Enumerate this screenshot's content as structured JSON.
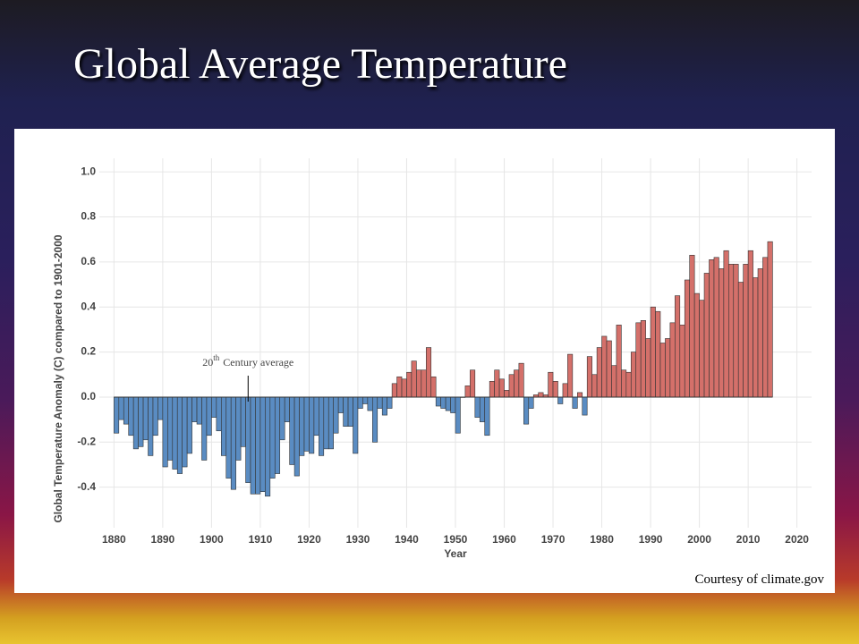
{
  "chart_data": {
    "type": "bar",
    "title": "Global Average Temperature",
    "xlabel": "Year",
    "ylabel": "Global Temperature Anomaly (C) compared to 1901-2000",
    "source": "Courtesy of climate.gov",
    "annotation": {
      "number": "20",
      "suffix": "th",
      "text": "Century average",
      "x": 1907
    },
    "positive_color": "#d4706a",
    "negative_color": "#5a8cc2",
    "grid": true,
    "xlim": [
      1877,
      2023
    ],
    "ylim": [
      -0.58,
      1.06
    ],
    "xticks": [
      1880,
      1890,
      1900,
      1910,
      1920,
      1930,
      1940,
      1950,
      1960,
      1970,
      1980,
      1990,
      2000,
      2010,
      2020
    ],
    "yticks": [
      -0.4,
      -0.2,
      {
        "value": 0,
        "label": "0.0"
      },
      0.2,
      0.4,
      0.6,
      0.8,
      {
        "value": 1,
        "label": "1.0"
      }
    ],
    "x": [
      1880,
      1881,
      1882,
      1883,
      1884,
      1885,
      1886,
      1887,
      1888,
      1889,
      1890,
      1891,
      1892,
      1893,
      1894,
      1895,
      1896,
      1897,
      1898,
      1899,
      1900,
      1901,
      1902,
      1903,
      1904,
      1905,
      1906,
      1907,
      1908,
      1909,
      1910,
      1911,
      1912,
      1913,
      1914,
      1915,
      1916,
      1917,
      1918,
      1919,
      1920,
      1921,
      1922,
      1923,
      1924,
      1925,
      1926,
      1927,
      1928,
      1929,
      1930,
      1931,
      1932,
      1933,
      1934,
      1935,
      1936,
      1937,
      1938,
      1939,
      1940,
      1941,
      1942,
      1943,
      1944,
      1945,
      1946,
      1947,
      1948,
      1949,
      1950,
      1951,
      1952,
      1953,
      1954,
      1955,
      1956,
      1957,
      1958,
      1959,
      1960,
      1961,
      1962,
      1963,
      1964,
      1965,
      1966,
      1967,
      1968,
      1969,
      1970,
      1971,
      1972,
      1973,
      1974,
      1975,
      1976,
      1977,
      1978,
      1979,
      1980,
      1981,
      1982,
      1983,
      1984,
      1985,
      1986,
      1987,
      1988,
      1989,
      1990,
      1991,
      1992,
      1993,
      1994,
      1995,
      1996,
      1997,
      1998,
      1999,
      2000,
      2001,
      2002,
      2003,
      2004,
      2005,
      2006,
      2007,
      2008,
      2009,
      2010,
      2011,
      2012,
      2013,
      2014
    ],
    "values": [
      -0.16,
      -0.1,
      -0.12,
      -0.17,
      -0.23,
      -0.22,
      -0.19,
      -0.26,
      -0.17,
      -0.1,
      -0.31,
      -0.28,
      -0.32,
      -0.34,
      -0.31,
      -0.25,
      -0.11,
      -0.12,
      -0.28,
      -0.17,
      -0.09,
      -0.15,
      -0.26,
      -0.36,
      -0.41,
      -0.28,
      -0.22,
      -0.38,
      -0.43,
      -0.43,
      -0.42,
      -0.44,
      -0.36,
      -0.34,
      -0.19,
      -0.11,
      -0.3,
      -0.35,
      -0.26,
      -0.24,
      -0.25,
      -0.17,
      -0.26,
      -0.23,
      -0.23,
      -0.16,
      -0.07,
      -0.13,
      -0.13,
      -0.25,
      -0.05,
      -0.03,
      -0.06,
      -0.2,
      -0.05,
      -0.08,
      -0.05,
      0.06,
      0.09,
      0.08,
      0.11,
      0.16,
      0.12,
      0.12,
      0.22,
      0.09,
      -0.04,
      -0.05,
      -0.06,
      -0.07,
      -0.16,
      0.0,
      0.05,
      0.12,
      -0.09,
      -0.11,
      -0.17,
      0.07,
      0.12,
      0.08,
      0.03,
      0.1,
      0.12,
      0.15,
      -0.12,
      -0.05,
      0.01,
      0.02,
      0.01,
      0.11,
      0.07,
      -0.03,
      0.06,
      0.19,
      -0.05,
      0.02,
      -0.08,
      0.18,
      0.1,
      0.22,
      0.27,
      0.25,
      0.14,
      0.32,
      0.12,
      0.11,
      0.2,
      0.33,
      0.34,
      0.26,
      0.4,
      0.38,
      0.24,
      0.26,
      0.33,
      0.45,
      0.32,
      0.52,
      0.63,
      0.46,
      0.43,
      0.55,
      0.61,
      0.62,
      0.57,
      0.65,
      0.59,
      0.59,
      0.51,
      0.59,
      0.65,
      0.53,
      0.57,
      0.62,
      0.69
    ]
  }
}
